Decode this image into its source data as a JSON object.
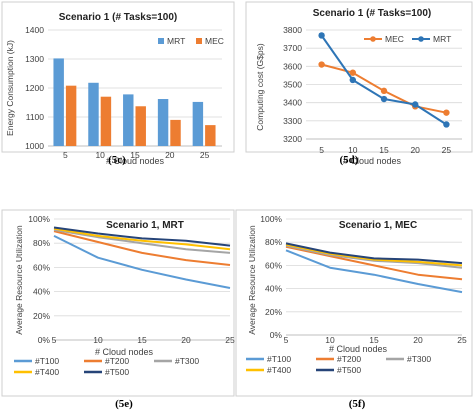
{
  "captions": [
    "(5c)",
    "(5d)",
    "(5e)",
    "(5f)"
  ],
  "chart_data": [
    {
      "type": "bar",
      "title": "Scenario 1 (# Tasks=100)",
      "xlabel": "# Cloud nodes",
      "ylabel": "Energy Consumption (kJ)",
      "categories": [
        "5",
        "10",
        "15",
        "20",
        "25"
      ],
      "ylim": [
        1000,
        1400
      ],
      "yticks": [
        1000,
        1100,
        1200,
        1300,
        1400
      ],
      "grid": true,
      "legend": "top-right",
      "series": [
        {
          "name": "MRT",
          "color": "#5b9bd5",
          "values": [
            1302,
            1218,
            1178,
            1162,
            1152
          ]
        },
        {
          "name": "MEC",
          "color": "#ed7d31",
          "values": [
            1208,
            1170,
            1137,
            1090,
            1072
          ]
        }
      ]
    },
    {
      "type": "line",
      "title": "Scenario 1 (# Tasks=100)",
      "xlabel": "# Cloud nodes",
      "ylabel": "Computing cost (G$ps)",
      "categories": [
        "5",
        "10",
        "15",
        "20",
        "25"
      ],
      "ylim": [
        3200,
        3800
      ],
      "yticks": [
        3200,
        3300,
        3400,
        3500,
        3600,
        3700,
        3800
      ],
      "yticklabels": [
        "3200",
        "3300",
        "3400",
        "3500",
        "3600",
        "3700",
        "3800"
      ],
      "grid": true,
      "legend": "top-right",
      "series": [
        {
          "name": "MEC",
          "color": "#ed7d31",
          "values": [
            3610,
            3565,
            3465,
            3380,
            3345
          ]
        },
        {
          "name": "MRT",
          "color": "#2e75b6",
          "values": [
            3770,
            3525,
            3420,
            3390,
            3280
          ]
        }
      ]
    },
    {
      "type": "line",
      "title": "Scenario 1, MRT",
      "xlabel": "# Cloud nodes",
      "ylabel": "Average Resource Utilization",
      "x": [
        5,
        10,
        15,
        20,
        25
      ],
      "xticks": [
        5,
        10,
        15,
        20,
        25
      ],
      "xticklabels": [
        "5",
        "10",
        "15",
        "20",
        "25"
      ],
      "ylim": [
        0,
        100
      ],
      "yticks": [
        0,
        20,
        40,
        60,
        80,
        100
      ],
      "yticklabels": [
        "0%",
        "20%",
        "40%",
        "60%",
        "80%",
        "100%"
      ],
      "grid": true,
      "legend": "bottom",
      "series": [
        {
          "name": "#T100",
          "color": "#5b9bd5",
          "values": [
            86,
            68,
            58,
            50,
            43
          ]
        },
        {
          "name": "#T200",
          "color": "#ed7d31",
          "values": [
            90,
            81,
            72,
            66,
            62
          ]
        },
        {
          "name": "#T300",
          "color": "#a5a5a5",
          "values": [
            91,
            85,
            80,
            75,
            72
          ]
        },
        {
          "name": "#T400",
          "color": "#ffc000",
          "values": [
            92,
            86,
            82,
            79,
            75
          ]
        },
        {
          "name": "#T500",
          "color": "#264478",
          "values": [
            93,
            88,
            84,
            82,
            78
          ]
        }
      ]
    },
    {
      "type": "line",
      "title": "Scenario 1, MEC",
      "xlabel": "# Cloud nodes",
      "ylabel": "Average Resource Utilization",
      "x": [
        5,
        10,
        15,
        20,
        25
      ],
      "xticks": [
        5,
        10,
        15,
        20,
        25
      ],
      "xticklabels": [
        "5",
        "10",
        "15",
        "20",
        "25"
      ],
      "ylim": [
        0,
        100
      ],
      "yticks": [
        0,
        20,
        40,
        60,
        80,
        100
      ],
      "yticklabels": [
        "0%",
        "20%",
        "40%",
        "60%",
        "80%",
        "100%"
      ],
      "grid": true,
      "legend": "bottom",
      "series": [
        {
          "name": "#T100",
          "color": "#5b9bd5",
          "values": [
            73,
            58,
            52,
            44,
            37
          ]
        },
        {
          "name": "#T200",
          "color": "#ed7d31",
          "values": [
            76,
            68,
            60,
            52,
            48
          ]
        },
        {
          "name": "#T300",
          "color": "#a5a5a5",
          "values": [
            77,
            69,
            64,
            62,
            58
          ]
        },
        {
          "name": "#T400",
          "color": "#ffc000",
          "values": [
            78,
            70,
            65,
            63,
            60
          ]
        },
        {
          "name": "#T500",
          "color": "#264478",
          "values": [
            79,
            71,
            66,
            65,
            62
          ]
        }
      ]
    }
  ]
}
